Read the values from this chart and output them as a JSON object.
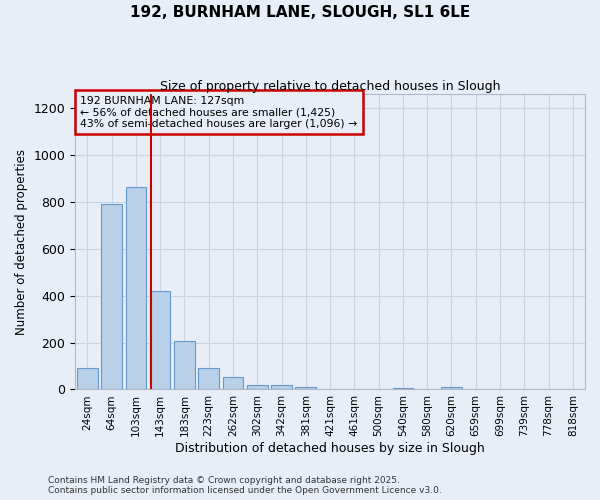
{
  "title": "192, BURNHAM LANE, SLOUGH, SL1 6LE",
  "subtitle": "Size of property relative to detached houses in Slough",
  "xlabel": "Distribution of detached houses by size in Slough",
  "ylabel": "Number of detached properties",
  "categories": [
    "24sqm",
    "64sqm",
    "103sqm",
    "143sqm",
    "183sqm",
    "223sqm",
    "262sqm",
    "302sqm",
    "342sqm",
    "381sqm",
    "421sqm",
    "461sqm",
    "500sqm",
    "540sqm",
    "580sqm",
    "620sqm",
    "659sqm",
    "699sqm",
    "739sqm",
    "778sqm",
    "818sqm"
  ],
  "values": [
    90,
    790,
    865,
    420,
    205,
    90,
    52,
    20,
    20,
    10,
    0,
    0,
    0,
    8,
    0,
    12,
    0,
    0,
    0,
    0,
    0
  ],
  "bar_color": "#b8d0e8",
  "bar_edge_color": "#6699cc",
  "grid_color": "#c8d4e4",
  "bg_color": "#e8eef8",
  "red_line_x": 2.62,
  "annotation_text": "192 BURNHAM LANE: 127sqm\n← 56% of detached houses are smaller (1,425)\n43% of semi-detached houses are larger (1,096) →",
  "annotation_box_color": "#cc0000",
  "ylim": [
    0,
    1260
  ],
  "yticks": [
    0,
    200,
    400,
    600,
    800,
    1000,
    1200
  ],
  "footer_line1": "Contains HM Land Registry data © Crown copyright and database right 2025.",
  "footer_line2": "Contains public sector information licensed under the Open Government Licence v3.0."
}
